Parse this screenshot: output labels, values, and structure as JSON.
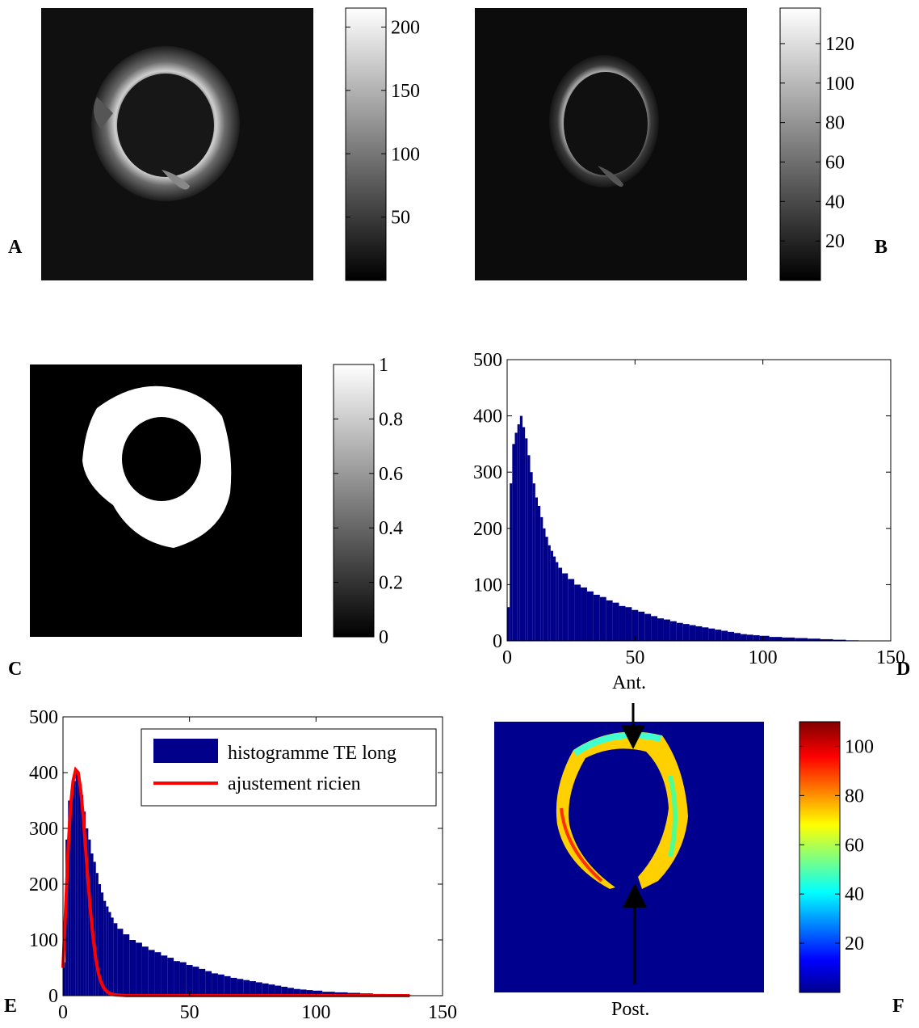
{
  "panels": {
    "A": "A",
    "B": "B",
    "C": "C",
    "D": "D",
    "E": "E",
    "F": "F"
  },
  "annotations": {
    "anterior": "Ant.",
    "posterior": "Post."
  },
  "colormaps": {
    "gray": [
      "#000000",
      "#ffffff"
    ],
    "jet": [
      "#00008f",
      "#0000ff",
      "#00ffff",
      "#ffff00",
      "#ff0000",
      "#800000"
    ]
  },
  "chart_data": [
    {
      "panel": "A",
      "type": "heatmap",
      "description_visible": "grayscale MR image of ring",
      "colorbar": {
        "ticks": [
          50,
          100,
          150,
          200
        ],
        "range": [
          0,
          215
        ],
        "colormap": "gray"
      }
    },
    {
      "panel": "B",
      "type": "heatmap",
      "colorbar": {
        "ticks": [
          20,
          40,
          60,
          80,
          100,
          120
        ],
        "range": [
          0,
          138
        ],
        "colormap": "gray"
      }
    },
    {
      "panel": "C",
      "type": "heatmap",
      "colorbar": {
        "ticks": [
          0,
          0.2,
          0.4,
          0.6,
          0.8,
          1
        ],
        "range": [
          0,
          1
        ],
        "colormap": "gray"
      }
    },
    {
      "panel": "D",
      "type": "bar",
      "xlim": [
        0,
        150
      ],
      "ylim": [
        0,
        500
      ],
      "xticks": [
        0,
        50,
        100,
        150
      ],
      "yticks": [
        0,
        100,
        200,
        300,
        400,
        500
      ],
      "bar_color": "#00008b",
      "series": [
        {
          "x": [
            0.5,
            1.5,
            2.5,
            3.5,
            4.5,
            5.5,
            6.5,
            7.5,
            8.5,
            9.5,
            10.5,
            11.5,
            12.5,
            13.5,
            14.5,
            15.5,
            16.5,
            17.5,
            18.5,
            19.5,
            20.5,
            22.5,
            25,
            27.5,
            30,
            32.5,
            35,
            37.5,
            40,
            42.5,
            45,
            47.5,
            50,
            52.5,
            55,
            57.5,
            60,
            62.5,
            65,
            67.5,
            70,
            72.5,
            75,
            77.5,
            80,
            82.5,
            85,
            87.5,
            90,
            92.5,
            95,
            97.5,
            100,
            105,
            110,
            115,
            120,
            125,
            130,
            135
          ],
          "values": [
            60,
            280,
            350,
            370,
            385,
            400,
            380,
            360,
            330,
            300,
            280,
            255,
            240,
            220,
            200,
            185,
            170,
            160,
            150,
            140,
            130,
            120,
            110,
            100,
            95,
            88,
            82,
            78,
            72,
            68,
            62,
            60,
            55,
            52,
            48,
            44,
            40,
            38,
            35,
            32,
            30,
            28,
            26,
            24,
            22,
            20,
            18,
            16,
            14,
            12,
            11,
            10,
            9,
            7,
            6,
            5,
            4,
            3,
            2,
            1
          ]
        }
      ]
    },
    {
      "panel": "E",
      "type": "bar",
      "xlim": [
        0,
        150
      ],
      "ylim": [
        0,
        500
      ],
      "xticks": [
        0,
        50,
        100,
        150
      ],
      "yticks": [
        0,
        100,
        200,
        300,
        400,
        500
      ],
      "legend_position": "top-right",
      "series": [
        {
          "name": "histogramme TE long",
          "color": "#00008b",
          "x": [
            0.5,
            1.5,
            2.5,
            3.5,
            4.5,
            5.5,
            6.5,
            7.5,
            8.5,
            9.5,
            10.5,
            11.5,
            12.5,
            13.5,
            14.5,
            15.5,
            16.5,
            17.5,
            18.5,
            19.5,
            20.5,
            22.5,
            25,
            27.5,
            30,
            32.5,
            35,
            37.5,
            40,
            42.5,
            45,
            47.5,
            50,
            52.5,
            55,
            57.5,
            60,
            62.5,
            65,
            67.5,
            70,
            72.5,
            75,
            77.5,
            80,
            82.5,
            85,
            87.5,
            90,
            92.5,
            95,
            97.5,
            100,
            105,
            110,
            115,
            120,
            125,
            130,
            135
          ],
          "values": [
            60,
            280,
            350,
            370,
            385,
            400,
            380,
            360,
            330,
            300,
            280,
            255,
            240,
            220,
            200,
            185,
            170,
            160,
            150,
            140,
            130,
            120,
            110,
            100,
            95,
            88,
            82,
            78,
            72,
            68,
            62,
            60,
            55,
            52,
            48,
            44,
            40,
            38,
            35,
            32,
            30,
            28,
            26,
            24,
            22,
            20,
            18,
            16,
            14,
            12,
            11,
            10,
            9,
            7,
            6,
            5,
            4,
            3,
            2,
            1
          ]
        },
        {
          "name": "ajustement ricien",
          "color": "#ff0000",
          "type": "line",
          "x": [
            0,
            1,
            2,
            3,
            4,
            5,
            6,
            7,
            8,
            9,
            10,
            11,
            12,
            13,
            14,
            15,
            16,
            17,
            18,
            20,
            22,
            25,
            30,
            40,
            60,
            100,
            137
          ],
          "values": [
            50,
            150,
            260,
            340,
            385,
            405,
            400,
            370,
            320,
            260,
            200,
            145,
            100,
            65,
            40,
            25,
            15,
            9,
            5,
            2,
            1,
            0,
            0,
            0,
            0,
            0,
            0
          ]
        }
      ]
    },
    {
      "panel": "F",
      "type": "heatmap",
      "colorbar": {
        "ticks": [
          20,
          40,
          60,
          80,
          100
        ],
        "range": [
          0,
          110
        ],
        "colormap": "jet"
      }
    }
  ]
}
